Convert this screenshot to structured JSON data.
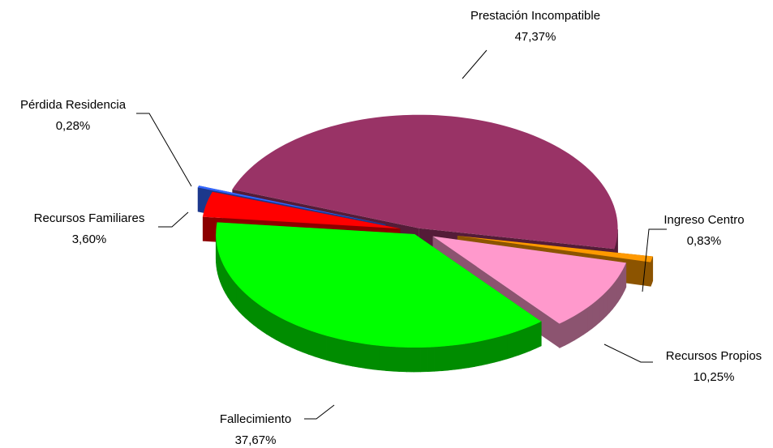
{
  "chart_data": {
    "type": "pie",
    "categories": [
      "Prestación Incompatible",
      "Ingreso Centro",
      "Recursos Propios",
      "Fallecimiento",
      "Recursos Familiares",
      "Pérdida Residencia"
    ],
    "values": [
      47.37,
      0.83,
      10.25,
      37.67,
      3.6,
      0.28
    ],
    "value_labels": [
      "47,37%",
      "0,83%",
      "10,25%",
      "37,67%",
      "3,60%",
      "0,28%"
    ],
    "colors": [
      "#993366",
      "#ff9900",
      "#ff99cc",
      "#00ff00",
      "#ff0000",
      "#3366ff"
    ]
  }
}
